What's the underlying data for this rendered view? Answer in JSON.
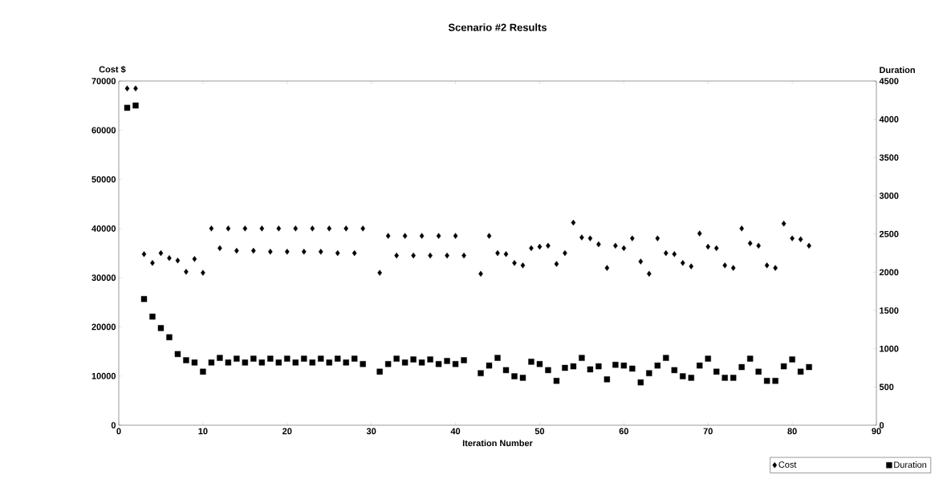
{
  "chart_data": {
    "type": "scatter",
    "title": "Scenario #2 Results",
    "xlabel": "Iteration Number",
    "ylabel": "Cost $",
    "y2label": "Duration",
    "x": [
      1,
      2,
      3,
      4,
      5,
      6,
      7,
      8,
      9,
      10,
      11,
      12,
      13,
      14,
      15,
      16,
      17,
      18,
      19,
      20,
      21,
      22,
      23,
      24,
      25,
      26,
      27,
      28,
      29,
      31,
      32,
      33,
      34,
      35,
      36,
      37,
      38,
      39,
      40,
      41,
      43,
      44,
      45,
      46,
      47,
      48,
      49,
      50,
      51,
      52,
      53,
      54,
      55,
      56,
      57,
      58,
      59,
      60,
      61,
      62,
      63,
      64,
      65,
      66,
      67,
      68,
      69,
      70,
      71,
      72,
      73,
      74,
      75,
      76,
      77,
      78,
      79,
      80,
      81,
      82
    ],
    "series": [
      {
        "name": "Cost",
        "color": "#000000",
        "marker": "diamond",
        "values": [
          68500,
          68500,
          34800,
          33000,
          35000,
          34000,
          33500,
          31200,
          33800,
          31000,
          40000,
          36000,
          40000,
          35500,
          40000,
          35500,
          40000,
          35300,
          40000,
          35300,
          40000,
          35300,
          40000,
          35300,
          40000,
          35000,
          40000,
          35000,
          40000,
          31000,
          38500,
          34500,
          38500,
          34500,
          38500,
          34500,
          38500,
          34500,
          38500,
          34500,
          30800,
          38500,
          35000,
          34800,
          33000,
          32500,
          36000,
          36300,
          36500,
          32800,
          35000,
          41200,
          38200,
          38000,
          36800,
          32000,
          36500,
          36000,
          38000,
          33300,
          30800,
          38000,
          35000,
          34800,
          33000,
          32300,
          39000,
          36300,
          36000,
          32500,
          32000,
          40000,
          37000,
          36500,
          32500,
          32000,
          41000,
          38000,
          37800,
          36500
        ]
      },
      {
        "name": "Duration",
        "color": "#000000",
        "marker": "square",
        "axis": "y2",
        "values": [
          4150,
          4180,
          1650,
          1420,
          1270,
          1150,
          930,
          850,
          820,
          700,
          820,
          880,
          820,
          870,
          820,
          870,
          820,
          870,
          820,
          870,
          820,
          870,
          820,
          870,
          820,
          870,
          820,
          870,
          800,
          700,
          800,
          870,
          820,
          860,
          820,
          860,
          800,
          840,
          800,
          850,
          680,
          780,
          880,
          720,
          640,
          620,
          830,
          800,
          720,
          580,
          750,
          770,
          880,
          730,
          770,
          600,
          790,
          780,
          740,
          560,
          680,
          780,
          880,
          720,
          640,
          620,
          780,
          870,
          700,
          620,
          620,
          760,
          870,
          700,
          580,
          580,
          770,
          860,
          700,
          760
        ]
      }
    ],
    "xlim": [
      0,
      90
    ],
    "xticks": [
      0,
      10,
      20,
      30,
      40,
      50,
      60,
      70,
      80,
      90
    ],
    "ylim": [
      0,
      70000
    ],
    "yticks": [
      0,
      10000,
      20000,
      30000,
      40000,
      50000,
      60000,
      70000
    ],
    "y2lim": [
      0,
      4500
    ],
    "y2ticks": [
      0,
      500,
      1000,
      1500,
      2000,
      2500,
      3000,
      3500,
      4000,
      4500
    ],
    "grid": false,
    "legend": "bottom right"
  }
}
